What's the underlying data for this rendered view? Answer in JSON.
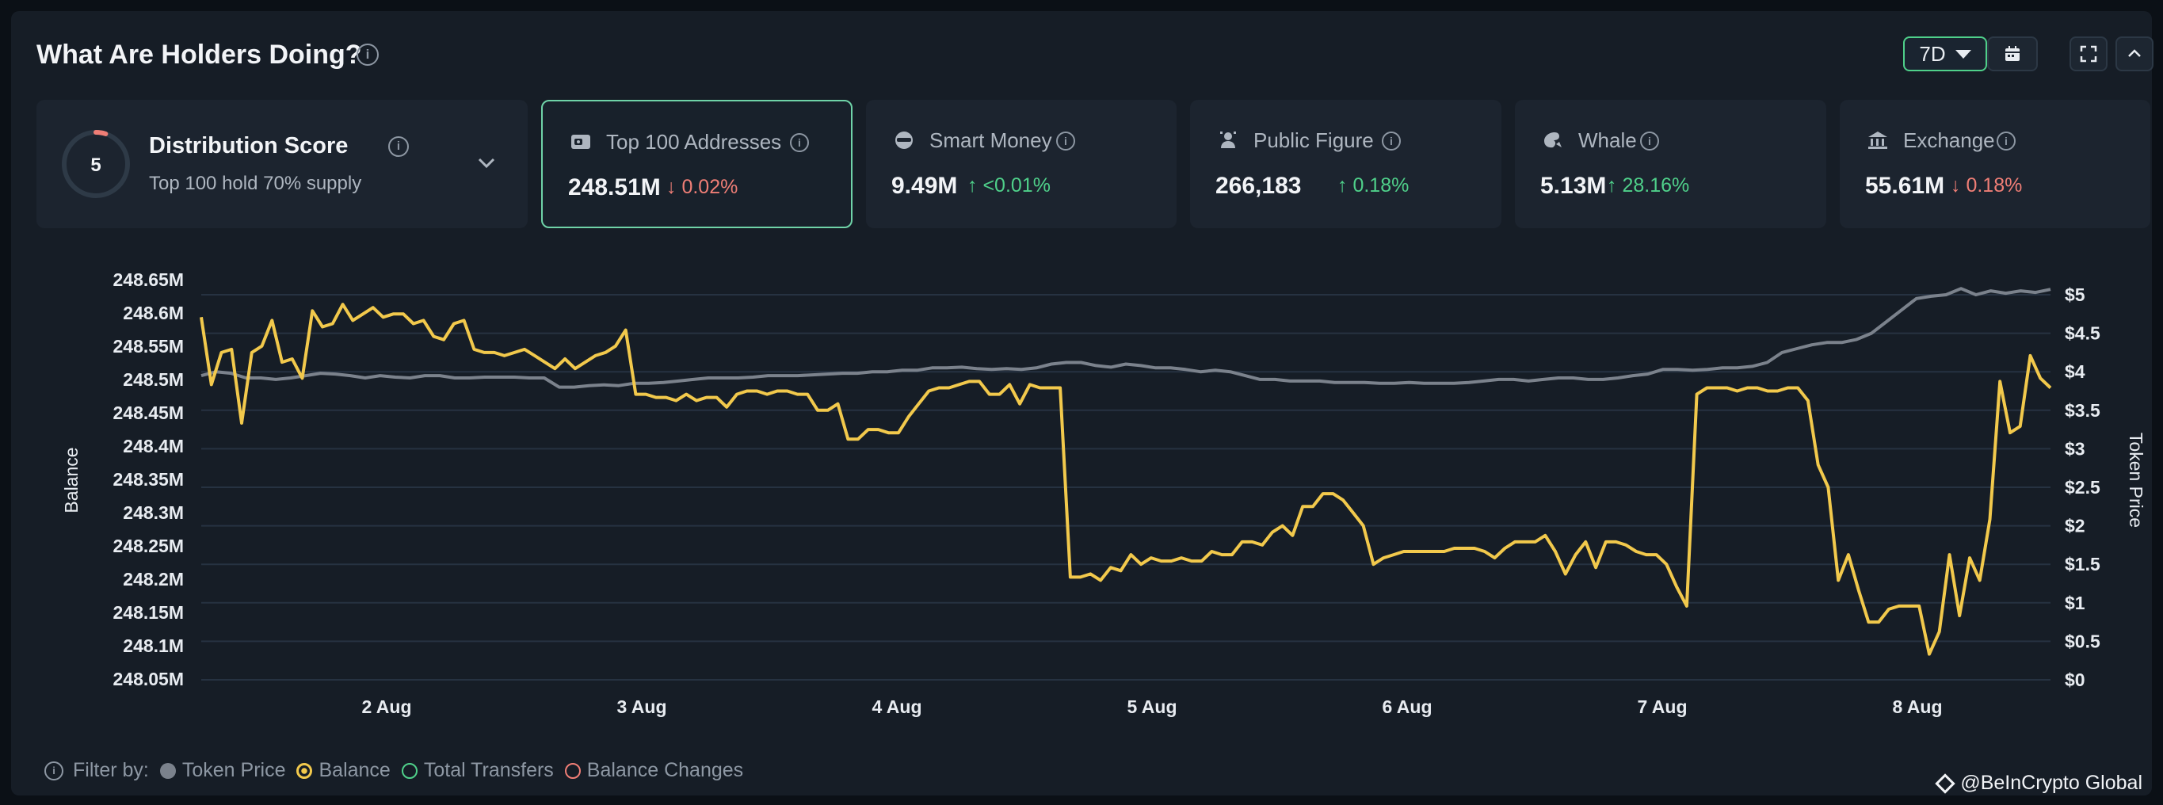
{
  "header": {
    "title": "What Are Holders Doing?",
    "period": "7D"
  },
  "distribution": {
    "score": "5",
    "label": "Distribution Score",
    "subtitle": "Top 100 hold 70% supply"
  },
  "cards": [
    {
      "label": "Top 100 Addresses",
      "value": "248.51M",
      "change": "0.02%",
      "direction": "down",
      "icon": "wallet-icon",
      "selected": true
    },
    {
      "label": "Smart Money",
      "value": "9.49M",
      "change": "<0.01%",
      "direction": "up",
      "icon": "smart-money-icon"
    },
    {
      "label": "Public Figure",
      "value": "266,183",
      "change": "0.18%",
      "direction": "up",
      "icon": "public-figure-icon"
    },
    {
      "label": "Whale",
      "value": "5.13M",
      "change": "28.16%",
      "direction": "up",
      "icon": "whale-icon"
    },
    {
      "label": "Exchange",
      "value": "55.61M",
      "change": "0.18%",
      "direction": "down",
      "icon": "bank-icon"
    }
  ],
  "colors": {
    "balance": "#f2c94c",
    "token_price": "#7b828c",
    "up": "#4fd08a",
    "down": "#ef7e76",
    "accent": "#6fd3a8"
  },
  "filter": {
    "label": "Filter by:",
    "items": [
      {
        "name": "Token Price",
        "style": "filled",
        "color": "#7b828c"
      },
      {
        "name": "Balance",
        "style": "ring-dot",
        "color": "#f2c94c"
      },
      {
        "name": "Total Transfers",
        "style": "ring",
        "color": "#4fd08a"
      },
      {
        "name": "Balance Changes",
        "style": "ring",
        "color": "#ef7e76"
      }
    ]
  },
  "brand": "@BeInCrypto Global",
  "chart_data": {
    "type": "line",
    "x_start": "2024-08-01T09:00",
    "x_end": "2024-08-08T15:00",
    "x_ticks": [
      "2 Aug",
      "3 Aug",
      "4 Aug",
      "5 Aug",
      "6 Aug",
      "7 Aug",
      "8 Aug"
    ],
    "y_left": {
      "label": "Balance",
      "min": 248.05,
      "max": 248.65,
      "ticks": [
        "248.65M",
        "248.6M",
        "248.55M",
        "248.5M",
        "248.45M",
        "248.4M",
        "248.35M",
        "248.3M",
        "248.25M",
        "248.2M",
        "248.15M",
        "248.1M",
        "248.05M"
      ]
    },
    "y_right": {
      "label": "Token Price",
      "min": 0,
      "max": 5,
      "ticks": [
        "$5",
        "$4.5",
        "$4",
        "$3.5",
        "$3",
        "$2.5",
        "$2",
        "$1.5",
        "$1",
        "$0.5",
        "$0"
      ]
    },
    "grid": true,
    "series": [
      {
        "name": "Balance",
        "axis": "left",
        "values": [
          248.615,
          248.51,
          248.56,
          248.565,
          248.45,
          248.56,
          248.57,
          248.61,
          248.545,
          248.55,
          248.52,
          248.625,
          248.6,
          248.605,
          248.635,
          248.61,
          248.62,
          248.63,
          248.615,
          248.62,
          248.62,
          248.605,
          248.61,
          248.585,
          248.58,
          248.605,
          248.61,
          248.565,
          248.56,
          248.56,
          248.555,
          248.56,
          248.565,
          248.555,
          248.545,
          248.535,
          248.55,
          248.535,
          248.545,
          248.555,
          248.56,
          248.57,
          248.595,
          248.495,
          248.495,
          248.49,
          248.49,
          248.485,
          248.495,
          248.485,
          248.49,
          248.49,
          248.475,
          248.495,
          248.5,
          248.5,
          248.495,
          248.5,
          248.5,
          248.495,
          248.495,
          248.47,
          248.47,
          248.48,
          248.425,
          248.425,
          248.44,
          248.44,
          248.435,
          248.435,
          248.46,
          248.48,
          248.5,
          248.505,
          248.505,
          248.51,
          248.515,
          248.515,
          248.495,
          248.495,
          248.51,
          248.48,
          248.51,
          248.505,
          248.505,
          248.505,
          248.21,
          248.21,
          248.215,
          248.205,
          248.225,
          248.22,
          248.245,
          248.23,
          248.24,
          248.235,
          248.235,
          248.24,
          248.235,
          248.235,
          248.25,
          248.245,
          248.245,
          248.265,
          248.265,
          248.26,
          248.28,
          248.29,
          248.275,
          248.32,
          248.32,
          248.34,
          248.34,
          248.33,
          248.31,
          248.29,
          248.23,
          248.24,
          248.245,
          248.25,
          248.25,
          248.25,
          248.25,
          248.25,
          248.255,
          248.255,
          248.255,
          248.25,
          248.24,
          248.255,
          248.265,
          248.265,
          248.265,
          248.275,
          248.25,
          248.215,
          248.245,
          248.265,
          248.225,
          248.265,
          248.265,
          248.26,
          248.25,
          248.245,
          248.245,
          248.23,
          248.195,
          248.165,
          248.495,
          248.505,
          248.505,
          248.505,
          248.5,
          248.505,
          248.505,
          248.5,
          248.5,
          248.505,
          248.505,
          248.485,
          248.385,
          248.35,
          248.205,
          248.245,
          248.19,
          248.14,
          248.14,
          248.16,
          248.165,
          248.165,
          248.165,
          248.09,
          248.125,
          248.245,
          248.15,
          248.24,
          248.205,
          248.3,
          248.515,
          248.435,
          248.445,
          248.555,
          248.52,
          248.505
        ]
      },
      {
        "name": "Token Price",
        "axis": "right",
        "values": [
          3.95,
          4.0,
          3.98,
          3.92,
          3.92,
          3.9,
          3.92,
          3.95,
          3.98,
          3.97,
          3.95,
          3.92,
          3.95,
          3.93,
          3.92,
          3.95,
          3.95,
          3.92,
          3.92,
          3.93,
          3.93,
          3.93,
          3.92,
          3.92,
          3.8,
          3.8,
          3.82,
          3.83,
          3.82,
          3.85,
          3.85,
          3.86,
          3.88,
          3.9,
          3.92,
          3.92,
          3.92,
          3.93,
          3.95,
          3.95,
          3.95,
          3.96,
          3.97,
          3.98,
          3.98,
          4.0,
          4.0,
          4.02,
          4.02,
          4.05,
          4.05,
          4.06,
          4.04,
          4.03,
          4.04,
          4.03,
          4.05,
          4.1,
          4.12,
          4.12,
          4.08,
          4.06,
          4.1,
          4.08,
          4.05,
          4.05,
          4.03,
          4.0,
          4.02,
          4.0,
          3.95,
          3.9,
          3.9,
          3.88,
          3.88,
          3.88,
          3.86,
          3.86,
          3.86,
          3.85,
          3.85,
          3.86,
          3.85,
          3.85,
          3.85,
          3.86,
          3.88,
          3.9,
          3.9,
          3.88,
          3.9,
          3.92,
          3.92,
          3.9,
          3.9,
          3.92,
          3.95,
          3.97,
          4.03,
          4.03,
          4.02,
          4.03,
          4.05,
          4.05,
          4.07,
          4.12,
          4.25,
          4.3,
          4.35,
          4.38,
          4.38,
          4.42,
          4.5,
          4.65,
          4.8,
          4.95,
          4.98,
          5.0,
          5.08,
          5.0,
          5.05,
          5.02,
          5.05,
          5.03,
          5.07
        ]
      }
    ]
  }
}
